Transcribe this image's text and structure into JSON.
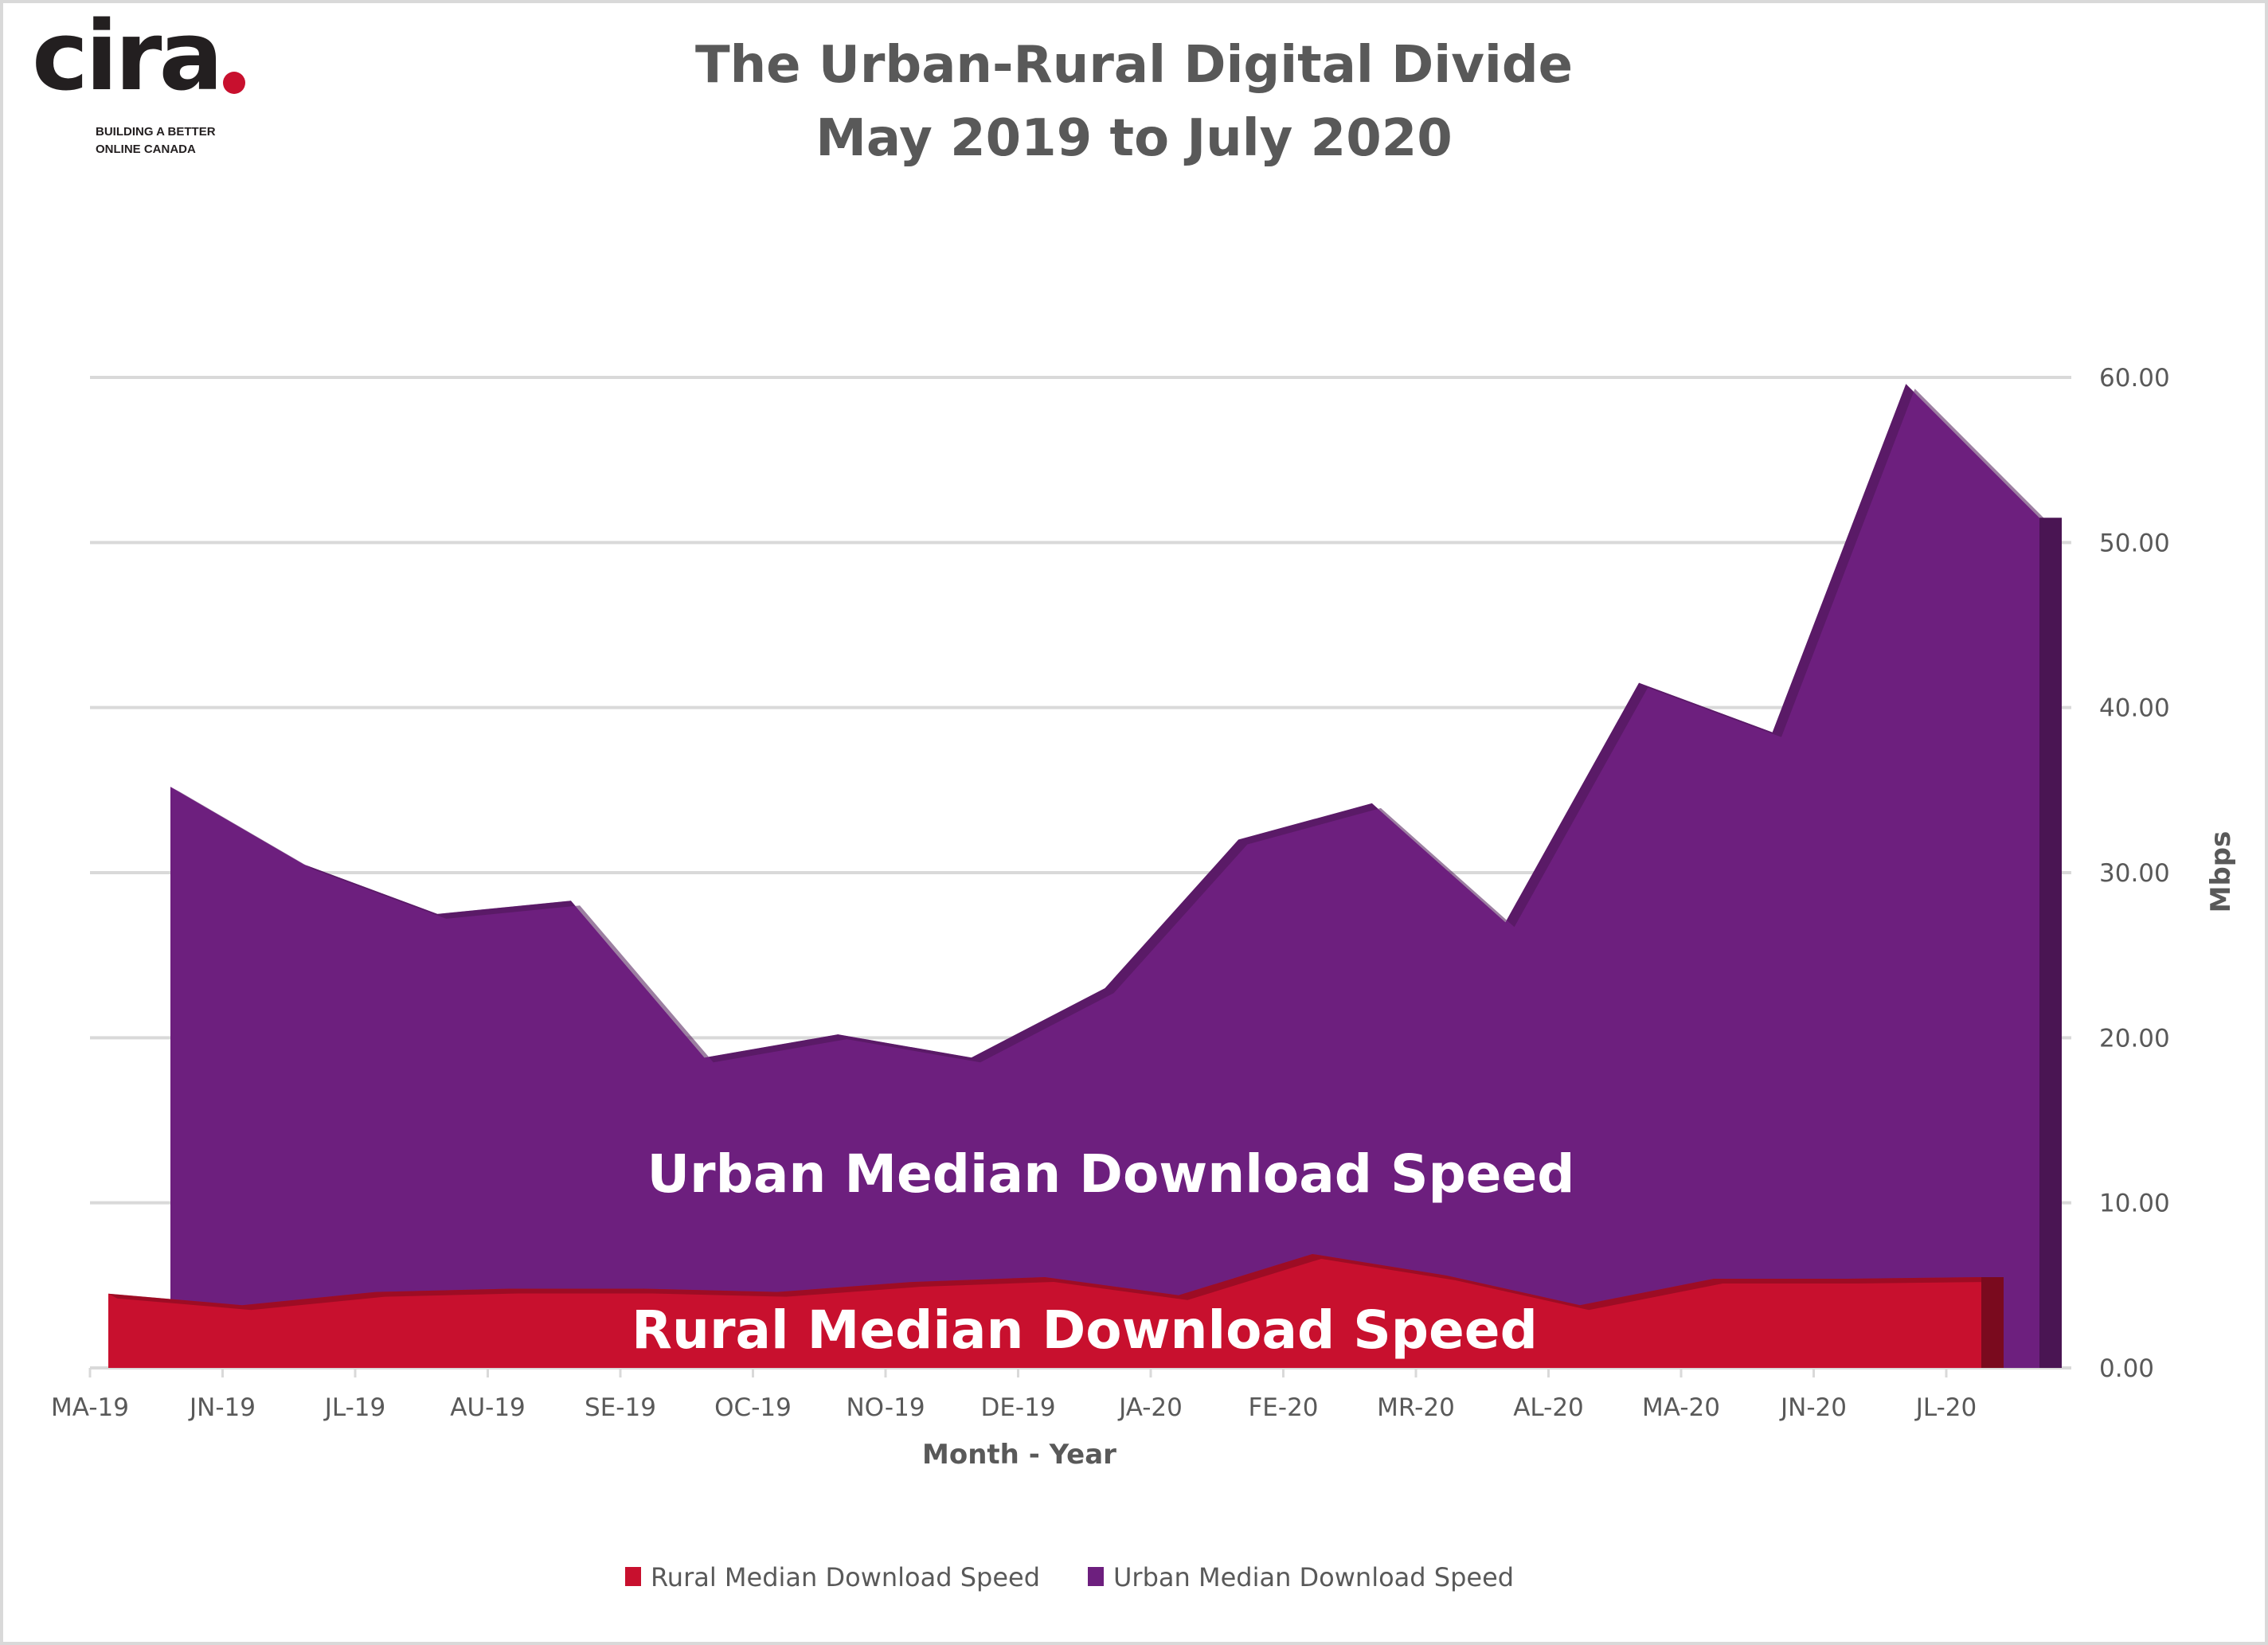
{
  "logo": {
    "wordmark": "cira",
    "tagline_line1": "BUILDING A BETTER",
    "tagline_line2": "ONLINE CANADA"
  },
  "chart_data": {
    "type": "area",
    "title": "The Urban-Rural Digital Divide",
    "subtitle": "May 2019 to July 2020",
    "xlabel": "Month - Year",
    "ylabel": "Mbps",
    "ylim": [
      0,
      60
    ],
    "yticks": [
      "0.00",
      "10.00",
      "20.00",
      "30.00",
      "40.00",
      "50.00",
      "60.00"
    ],
    "grid": true,
    "legend_position": "bottom",
    "y_axis_side": "right",
    "categories": [
      "MA-19",
      "JN-19",
      "JL-19",
      "AU-19",
      "SE-19",
      "OC-19",
      "NO-19",
      "DE-19",
      "JA-20",
      "FE-20",
      "MR-20",
      "AL-20",
      "MA-20",
      "JN-20",
      "JL-20"
    ],
    "series": [
      {
        "name": "Rural Median Download Speed",
        "color": "#c8102e",
        "values": [
          4.5,
          3.8,
          4.6,
          4.8,
          4.8,
          4.6,
          5.2,
          5.5,
          4.4,
          6.9,
          5.6,
          3.8,
          5.4,
          5.4,
          5.5
        ]
      },
      {
        "name": "Urban Median Download Speed",
        "color": "#6d1f7e",
        "values": [
          35.2,
          30.5,
          27.5,
          28.3,
          18.8,
          20.2,
          18.8,
          23.0,
          32.0,
          34.2,
          27.0,
          41.5,
          38.5,
          59.6,
          51.5
        ]
      }
    ],
    "annotations": [
      "Urban Median Download Speed",
      "Rural Median Download Speed"
    ]
  }
}
